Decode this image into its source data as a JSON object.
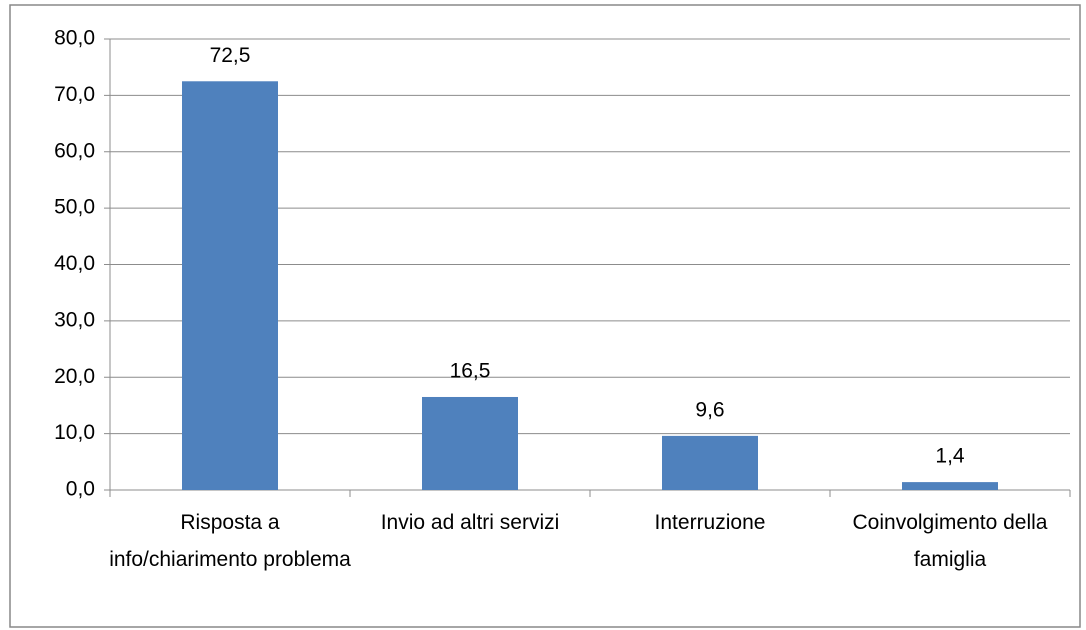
{
  "chart_data": {
    "type": "bar",
    "categories": [
      "Risposta a info/chiarimento problema",
      "Invio ad altri servizi",
      "Interruzione",
      "Coinvolgimento della famiglia"
    ],
    "values": [
      72.5,
      16.5,
      9.6,
      1.4
    ],
    "value_labels": [
      "72,5",
      "16,5",
      "9,6",
      "1,4"
    ],
    "color": "#4f81bd",
    "ylim": [
      0,
      80
    ],
    "yticks": [
      {
        "value": 0,
        "label": "0,0"
      },
      {
        "value": 10,
        "label": "10,0"
      },
      {
        "value": 20,
        "label": "20,0"
      },
      {
        "value": 30,
        "label": "30,0"
      },
      {
        "value": 40,
        "label": "40,0"
      },
      {
        "value": 50,
        "label": "50,0"
      },
      {
        "value": 60,
        "label": "60,0"
      },
      {
        "value": 70,
        "label": "70,0"
      },
      {
        "value": 80,
        "label": "80,0"
      }
    ],
    "grid": true
  }
}
